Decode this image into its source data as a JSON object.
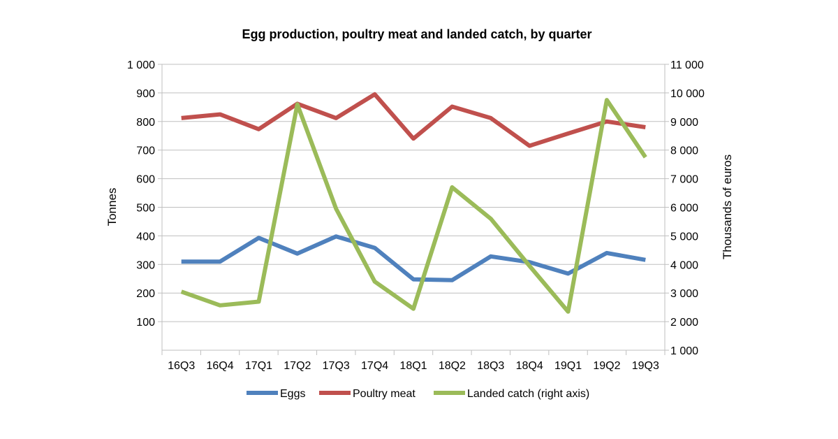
{
  "chart_data": {
    "type": "line",
    "title": "Egg production,  poultry meat and landed catch, by quarter",
    "categories": [
      "16Q3",
      "16Q4",
      "17Q1",
      "17Q2",
      "17Q3",
      "17Q4",
      "18Q1",
      "18Q2",
      "18Q3",
      "18Q4",
      "19Q1",
      "19Q2",
      "19Q3"
    ],
    "ylabel": "Tonnes",
    "y2label": "Thousands of euros",
    "ylim": [
      0,
      1000
    ],
    "y2lim": [
      1000,
      11000
    ],
    "y_ticks": [
      100,
      200,
      300,
      400,
      500,
      600,
      700,
      800,
      900,
      1000
    ],
    "y_tick_labels": [
      "100",
      "200",
      "300",
      "400",
      "500",
      "600",
      "700",
      "800",
      "900",
      "1 000"
    ],
    "y2_ticks": [
      1000,
      2000,
      3000,
      4000,
      5000,
      6000,
      7000,
      8000,
      9000,
      10000,
      11000
    ],
    "y2_tick_labels": [
      "1 000",
      "2 000",
      "3 000",
      "4 000",
      "5 000",
      "6 000",
      "7 000",
      "8 000",
      "9 000",
      "10 000",
      "11 000"
    ],
    "grid": true,
    "legend_position": "bottom",
    "series": [
      {
        "name": "Eggs",
        "axis": "left",
        "color": "#4F81BD",
        "values": [
          310,
          310,
          393,
          338,
          398,
          358,
          248,
          245,
          328,
          308,
          268,
          340,
          316
        ]
      },
      {
        "name": "Poultry meat",
        "axis": "left",
        "color": "#C0504D",
        "values": [
          812,
          825,
          773,
          862,
          812,
          895,
          740,
          852,
          812,
          715,
          758,
          800,
          780
        ]
      },
      {
        "name": "Landed catch (right axis)",
        "axis": "right",
        "color": "#9BBB59",
        "values": [
          3050,
          2570,
          2700,
          9600,
          5950,
          3400,
          2450,
          6700,
          5600,
          3950,
          2350,
          9750,
          7750
        ]
      }
    ]
  }
}
